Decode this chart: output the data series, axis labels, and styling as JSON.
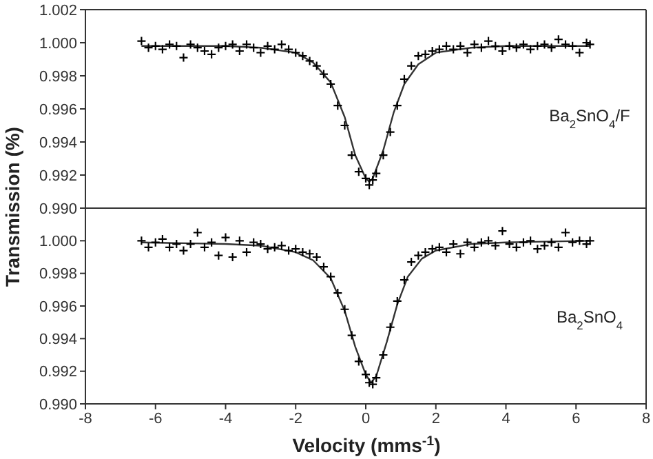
{
  "chart_data": [
    {
      "type": "scatter",
      "ylabel": "Transmission (%)",
      "annotations": [
        "Ba$_{2}$SnO$_{4}$/F"
      ],
      "xlim": [
        -8,
        8
      ],
      "xticks": [
        -8,
        -6,
        -4,
        -2,
        0,
        2,
        4,
        6,
        8
      ],
      "ylim": [
        0.99,
        1.002
      ],
      "yticks": [
        {
          "value": 0.99,
          "label": "0.990"
        },
        {
          "value": 0.992,
          "label": "0.992"
        },
        {
          "value": 0.994,
          "label": "0.994"
        },
        {
          "value": 0.996,
          "label": "0.996"
        },
        {
          "value": 0.998,
          "label": "0.998"
        },
        {
          "value": 1.0,
          "label": "1.000"
        },
        {
          "value": 1.002,
          "label": "1.002"
        }
      ],
      "tick_labels": "y",
      "legend": false,
      "series": [
        {
          "marker": "cross",
          "color": "#000000",
          "x": [
            -6.4,
            -6.2,
            -6.0,
            -5.8,
            -5.6,
            -5.4,
            -5.2,
            -5.0,
            -4.8,
            -4.6,
            -4.4,
            -4.2,
            -4.0,
            -3.8,
            -3.6,
            -3.4,
            -3.2,
            -3.0,
            -2.8,
            -2.6,
            -2.4,
            -2.2,
            -2.0,
            -1.8,
            -1.6,
            -1.4,
            -1.2,
            -1.0,
            -0.8,
            -0.6,
            -0.4,
            -0.2,
            0.0,
            0.1,
            0.2,
            0.3,
            0.5,
            0.7,
            0.9,
            1.1,
            1.3,
            1.5,
            1.7,
            1.9,
            2.1,
            2.3,
            2.5,
            2.7,
            2.9,
            3.1,
            3.3,
            3.5,
            3.7,
            3.9,
            4.1,
            4.3,
            4.5,
            4.7,
            4.9,
            5.1,
            5.3,
            5.5,
            5.7,
            5.9,
            6.1,
            6.3,
            6.4
          ],
          "values": [
            1.0001,
            0.9997,
            0.9998,
            0.9996,
            0.9999,
            0.9998,
            0.9991,
            0.9999,
            0.9997,
            0.9995,
            0.9993,
            0.9997,
            0.9998,
            0.9999,
            0.9995,
            0.9999,
            0.9997,
            0.9994,
            0.9998,
            0.9996,
            0.9999,
            0.9996,
            0.9994,
            0.9992,
            0.9989,
            0.9986,
            0.9981,
            0.9975,
            0.9962,
            0.995,
            0.9932,
            0.9922,
            0.9918,
            0.9914,
            0.9917,
            0.9921,
            0.9932,
            0.9946,
            0.9962,
            0.9978,
            0.9986,
            0.9992,
            0.9993,
            0.9995,
            0.9996,
            0.9998,
            0.9996,
            0.9998,
            0.9994,
            0.9999,
            0.9997,
            1.0001,
            0.9998,
            0.9995,
            0.9998,
            0.9997,
            0.9999,
            0.9996,
            0.9998,
            0.9999,
            0.9997,
            1.0002,
            0.9999,
            0.9998,
            0.9994,
            1.0,
            0.9999
          ]
        },
        {
          "type": "line",
          "marker": "none",
          "line_style": "solid",
          "color": "#333333",
          "x": [
            -6.4,
            -4,
            -3,
            -2,
            -1.5,
            -1,
            -0.6,
            -0.3,
            0,
            0.1,
            0.2,
            0.5,
            0.8,
            1.1,
            1.5,
            2,
            3,
            4,
            6.4
          ],
          "values": [
            0.9998,
            0.9998,
            0.9997,
            0.9994,
            0.9988,
            0.9976,
            0.9955,
            0.9932,
            0.9918,
            0.9916,
            0.9918,
            0.9935,
            0.9958,
            0.9975,
            0.9987,
            0.9994,
            0.9997,
            0.9998,
            0.9998
          ]
        }
      ]
    },
    {
      "type": "scatter",
      "xlabel": "Velocity (mms$^{-1}$)",
      "annotations": [
        "Ba$_{2}$SnO$_{4}$"
      ],
      "xlim": [
        -8,
        8
      ],
      "xticks": [
        -8,
        -6,
        -4,
        -2,
        0,
        2,
        4,
        6,
        8
      ],
      "ylim": [
        0.99,
        1.002
      ],
      "yticks": [
        {
          "value": 0.99,
          "label": "0.990"
        },
        {
          "value": 0.992,
          "label": "0.992"
        },
        {
          "value": 0.994,
          "label": "0.994"
        },
        {
          "value": 0.996,
          "label": "0.996"
        },
        {
          "value": 0.998,
          "label": "0.998"
        },
        {
          "value": 1.0,
          "label": "1.000"
        },
        {
          "value": 1.002,
          "label": null
        }
      ],
      "legend": false,
      "series": [
        {
          "marker": "cross",
          "color": "#000000",
          "x": [
            -6.4,
            -6.2,
            -6.0,
            -5.8,
            -5.6,
            -5.4,
            -5.2,
            -5.0,
            -4.8,
            -4.6,
            -4.4,
            -4.2,
            -4.0,
            -3.8,
            -3.6,
            -3.4,
            -3.2,
            -3.0,
            -2.8,
            -2.6,
            -2.4,
            -2.2,
            -2.0,
            -1.8,
            -1.6,
            -1.4,
            -1.2,
            -1.0,
            -0.8,
            -0.6,
            -0.4,
            -0.2,
            0.0,
            0.1,
            0.2,
            0.3,
            0.5,
            0.7,
            0.9,
            1.1,
            1.3,
            1.5,
            1.7,
            1.9,
            2.1,
            2.3,
            2.5,
            2.7,
            2.9,
            3.1,
            3.3,
            3.5,
            3.7,
            3.9,
            4.1,
            4.3,
            4.5,
            4.7,
            4.9,
            5.1,
            5.3,
            5.5,
            5.7,
            5.9,
            6.1,
            6.3,
            6.4
          ],
          "values": [
            1.0,
            0.9996,
            0.9999,
            1.0001,
            0.9996,
            0.9998,
            0.9994,
            0.9998,
            1.0005,
            0.9996,
            0.9999,
            0.9991,
            1.0002,
            0.999,
            1.0,
            0.9993,
            0.9999,
            0.9998,
            0.9995,
            0.9996,
            0.9997,
            0.9994,
            0.9995,
            0.9993,
            0.9992,
            0.999,
            0.9984,
            0.9978,
            0.9968,
            0.9958,
            0.9942,
            0.9926,
            0.9918,
            0.9913,
            0.9912,
            0.9916,
            0.993,
            0.9947,
            0.9963,
            0.9976,
            0.9987,
            0.9991,
            0.9993,
            0.9995,
            0.9996,
            0.9993,
            0.9998,
            0.9992,
            0.9999,
            0.9996,
            0.9999,
            1.0,
            0.9997,
            1.0006,
            0.9998,
            0.9996,
            0.9999,
            1.0,
            0.9995,
            0.9997,
            0.9999,
            0.9996,
            1.0005,
            0.9999,
            1.0,
            0.9998,
            1.0
          ]
        },
        {
          "type": "line",
          "marker": "none",
          "line_style": "solid",
          "color": "#333333",
          "x": [
            -6.4,
            -4,
            -3,
            -2,
            -1.5,
            -1,
            -0.6,
            -0.3,
            0,
            0.15,
            0.3,
            0.6,
            0.9,
            1.2,
            1.6,
            2,
            3,
            4,
            6.4
          ],
          "values": [
            0.9999,
            0.9998,
            0.9997,
            0.9993,
            0.9988,
            0.9977,
            0.9957,
            0.9935,
            0.9918,
            0.9913,
            0.9917,
            0.9938,
            0.9961,
            0.9978,
            0.9989,
            0.9994,
            0.9998,
            0.9999,
            1.0
          ]
        }
      ]
    }
  ]
}
